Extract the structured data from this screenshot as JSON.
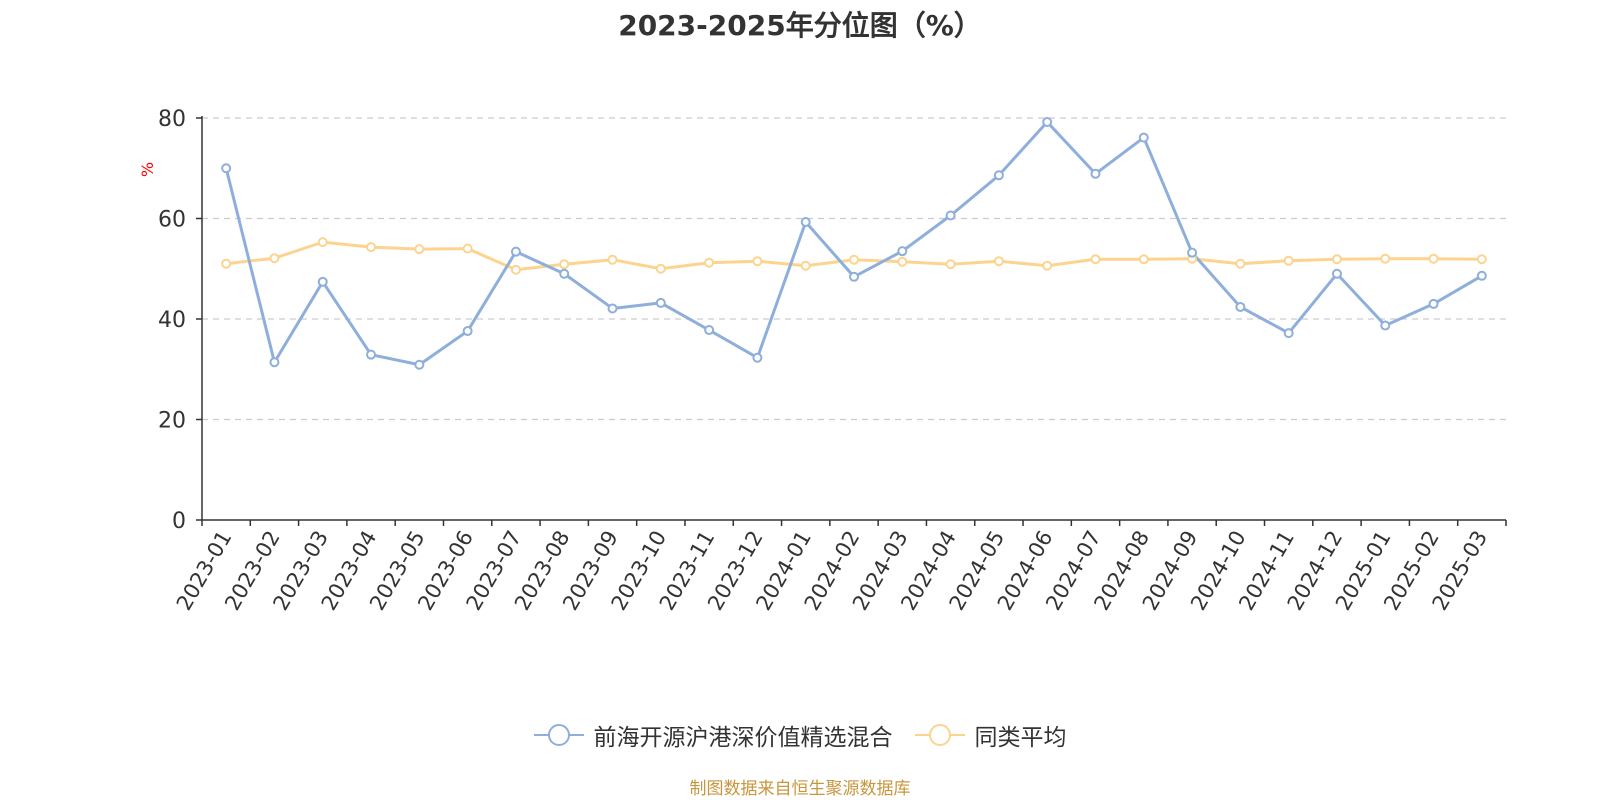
{
  "title": "2023-2025年分位图（%）",
  "source": "制图数据来自恒生聚源数据库",
  "chart_data": {
    "type": "line",
    "title": "2023-2025年分位图（%）",
    "xlabel": "",
    "ylabel": "%",
    "ylim": [
      0,
      80
    ],
    "yticks": [
      0,
      20,
      40,
      60,
      80
    ],
    "grid": true,
    "legend_position": "bottom",
    "categories": [
      "2023-01",
      "2023-02",
      "2023-03",
      "2023-04",
      "2023-05",
      "2023-06",
      "2023-07",
      "2023-08",
      "2023-09",
      "2023-10",
      "2023-11",
      "2023-12",
      "2024-01",
      "2024-02",
      "2024-03",
      "2024-04",
      "2024-05",
      "2024-06",
      "2024-07",
      "2024-08",
      "2024-09",
      "2024-10",
      "2024-11",
      "2024-12",
      "2025-01",
      "2025-02",
      "2025-03"
    ],
    "series": [
      {
        "name": "前海开源沪港深价值精选混合",
        "color": "#8eaedb",
        "values": [
          70.0,
          31.4,
          47.4,
          32.9,
          30.9,
          37.6,
          53.4,
          49.0,
          42.1,
          43.2,
          37.8,
          32.3,
          59.3,
          48.4,
          53.5,
          60.6,
          68.6,
          79.2,
          68.9,
          76.1,
          53.2,
          42.4,
          37.2,
          49.0,
          38.7,
          43.0,
          48.6
        ]
      },
      {
        "name": "同类平均",
        "color": "#fcd48f",
        "values": [
          51.0,
          52.1,
          55.3,
          54.3,
          53.9,
          54.0,
          49.8,
          50.9,
          51.8,
          50.0,
          51.2,
          51.5,
          50.6,
          51.8,
          51.4,
          50.9,
          51.5,
          50.6,
          51.9,
          51.9,
          52.0,
          51.0,
          51.6,
          51.9,
          52.0,
          52.0,
          51.9
        ]
      }
    ]
  }
}
